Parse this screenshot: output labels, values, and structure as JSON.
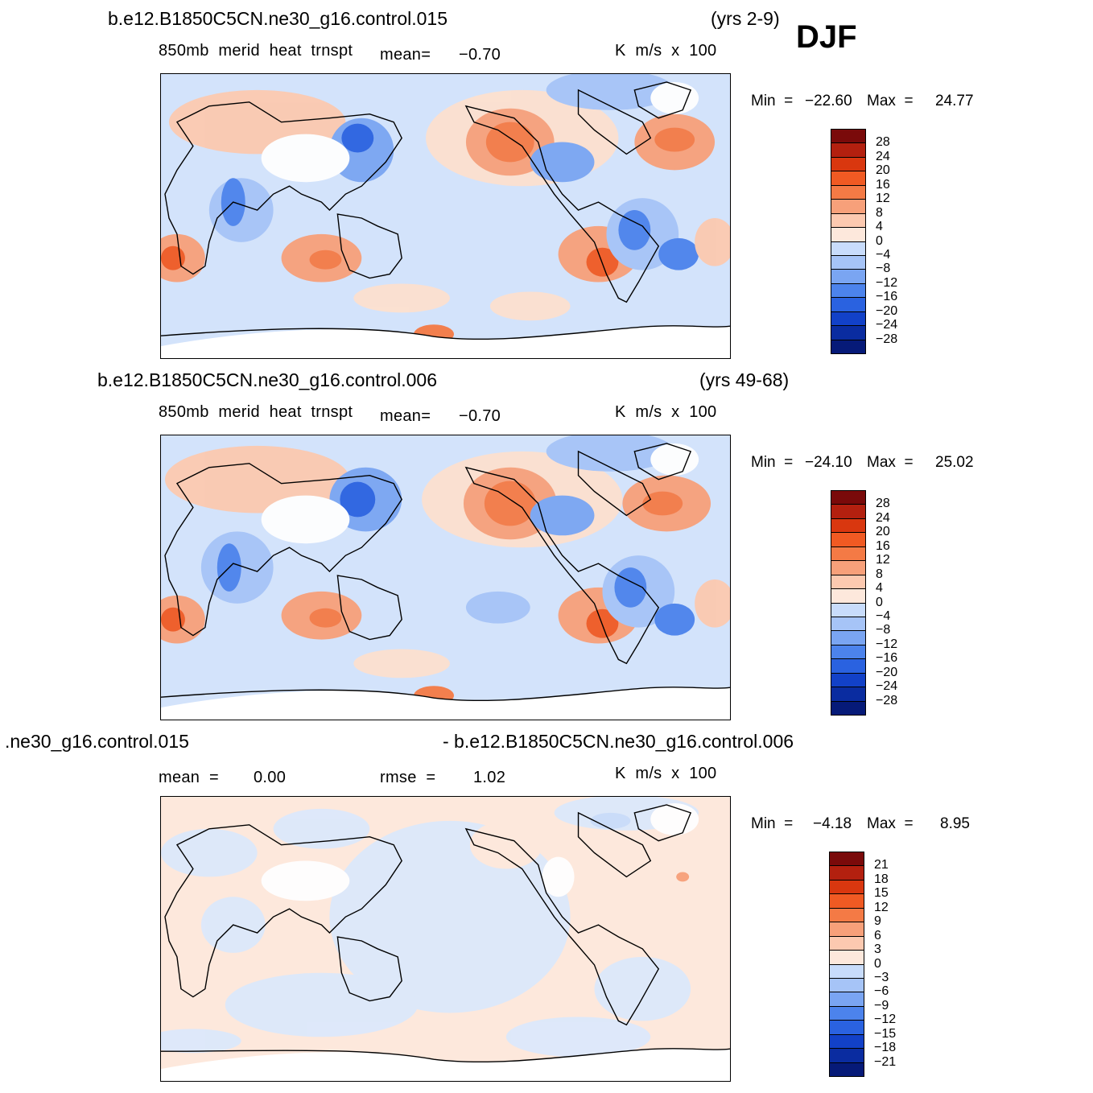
{
  "season": "DJF",
  "panels": [
    {
      "case": "b.e12.B1850C5CN.ne30_g16.control.015",
      "years": "(yrs 2-9)",
      "variable": "850mb  merid  heat  trnspt",
      "mean_label": "mean=",
      "mean_value": "−0.70",
      "units": "K  m/s  x  100",
      "min_label": "Min  =",
      "min_value": "−22.60",
      "max_label": "Max  =",
      "max_value": "24.77",
      "colorbar_labels": [
        "28",
        "24",
        "20",
        "16",
        "12",
        "8",
        "4",
        "0",
        "−4",
        "−8",
        "−12",
        "−16",
        "−20",
        "−24",
        "−28"
      ]
    },
    {
      "case": "b.e12.B1850C5CN.ne30_g16.control.006",
      "years": "(yrs 49-68)",
      "variable": "850mb  merid  heat  trnspt",
      "mean_label": "mean=",
      "mean_value": "−0.70",
      "units": "K  m/s  x  100",
      "min_label": "Min  =",
      "min_value": "−24.10",
      "max_label": "Max  =",
      "max_value": "25.02",
      "colorbar_labels": [
        "28",
        "24",
        "20",
        "16",
        "12",
        "8",
        "4",
        "0",
        "−4",
        "−8",
        "−12",
        "−16",
        "−20",
        "−24",
        "−28"
      ]
    },
    {
      "case_left": ".ne30_g16.control.015",
      "case_right": "- b.e12.B1850C5CN.ne30_g16.control.006",
      "mean_label": "mean  =",
      "mean_value": "0.00",
      "rmse_label": "rmse  =",
      "rmse_value": "1.02",
      "units": "K  m/s  x  100",
      "min_label": "Min  =",
      "min_value": "−4.18",
      "max_label": "Max  =",
      "max_value": "8.95",
      "colorbar_labels": [
        "21",
        "18",
        "15",
        "12",
        "9",
        "6",
        "3",
        "0",
        "−3",
        "−6",
        "−9",
        "−12",
        "−15",
        "−18",
        "−21"
      ]
    }
  ],
  "colors": {
    "scale": [
      "#7a0a0a",
      "#b3200f",
      "#d9370f",
      "#f05a23",
      "#f47a45",
      "#f7a07a",
      "#fcc9b0",
      "#fde8dc",
      "#e4eefc",
      "#c8dcfb",
      "#a6c4f7",
      "#7aa5f2",
      "#4c83ec",
      "#2a62e0",
      "#1241c8",
      "#0a2ca0",
      "#061a78"
    ],
    "coast": "#000000",
    "land_mask": "#ffffff"
  }
}
